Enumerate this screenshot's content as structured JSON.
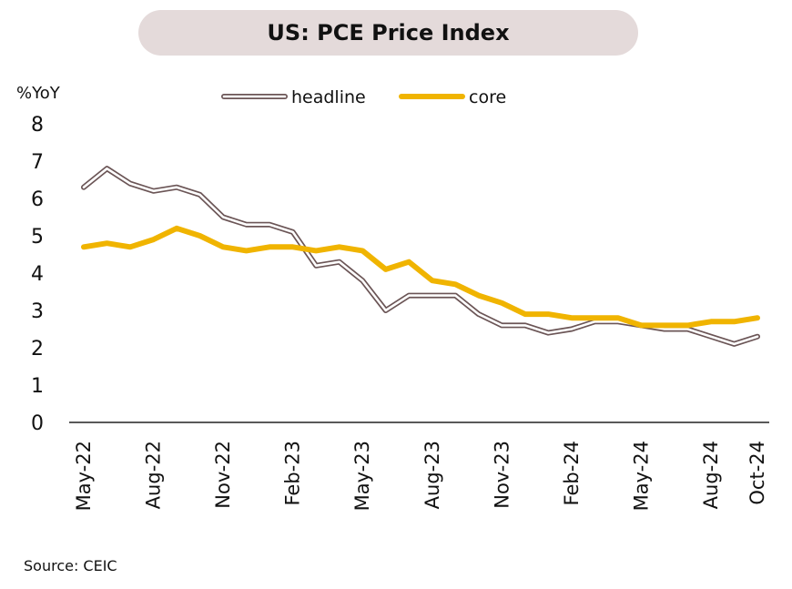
{
  "title": "US: PCE Price Index",
  "source": "Source: CEIC",
  "colors": {
    "headline": "#6b5556",
    "core": "#f0b400",
    "axis": "#222222",
    "title_bg": "#e4dada"
  },
  "chart_data": {
    "type": "line",
    "title": "US: PCE Price Index",
    "xlabel": "",
    "ylabel": "%YoY",
    "ylim": [
      0,
      8
    ],
    "yticks": [
      0,
      1,
      2,
      3,
      4,
      5,
      6,
      7,
      8
    ],
    "legend_position": "top-center",
    "grid": false,
    "x": [
      "May-22",
      "Jun-22",
      "Jul-22",
      "Aug-22",
      "Sep-22",
      "Oct-22",
      "Nov-22",
      "Dec-22",
      "Jan-23",
      "Feb-23",
      "Mar-23",
      "Apr-23",
      "May-23",
      "Jun-23",
      "Jul-23",
      "Aug-23",
      "Sep-23",
      "Oct-23",
      "Nov-23",
      "Dec-23",
      "Jan-24",
      "Feb-24",
      "Mar-24",
      "Apr-24",
      "May-24",
      "Jun-24",
      "Jul-24",
      "Aug-24",
      "Sep-24",
      "Oct-24"
    ],
    "xticks": [
      "May-22",
      "Aug-22",
      "Nov-22",
      "Feb-23",
      "May-23",
      "Aug-23",
      "Nov-23",
      "Feb-24",
      "May-24",
      "Aug-24",
      "Oct-24"
    ],
    "series": [
      {
        "name": "headline",
        "style": "double-line",
        "values": [
          6.3,
          6.8,
          6.4,
          6.2,
          6.3,
          6.1,
          5.5,
          5.3,
          5.3,
          5.1,
          4.2,
          4.3,
          3.8,
          3.0,
          3.4,
          3.4,
          3.4,
          2.9,
          2.6,
          2.6,
          2.4,
          2.5,
          2.7,
          2.7,
          2.6,
          2.5,
          2.5,
          2.3,
          2.1,
          2.3
        ]
      },
      {
        "name": "core",
        "style": "solid",
        "values": [
          4.7,
          4.8,
          4.7,
          4.9,
          5.2,
          5.0,
          4.7,
          4.6,
          4.7,
          4.7,
          4.6,
          4.7,
          4.6,
          4.1,
          4.3,
          3.8,
          3.7,
          3.4,
          3.2,
          2.9,
          2.9,
          2.8,
          2.8,
          2.8,
          2.6,
          2.6,
          2.6,
          2.7,
          2.7,
          2.8
        ]
      }
    ]
  }
}
